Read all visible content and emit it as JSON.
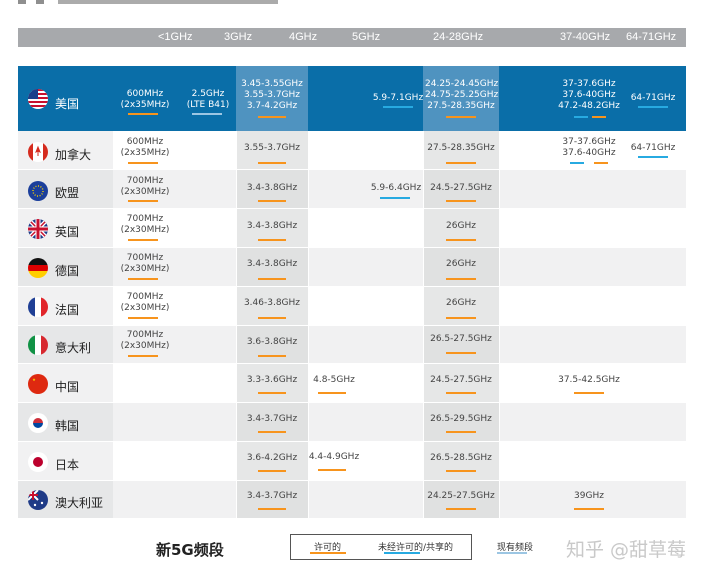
{
  "header": {
    "freq_labels": [
      "<1GHz",
      "3GHz",
      "4GHz",
      "5GHz",
      "24-28GHz",
      "37-40GHz",
      "64-71GHz"
    ]
  },
  "countries": [
    {
      "name": "美国",
      "flag": "us-flag-icon"
    },
    {
      "name": "加拿大",
      "flag": "canada-flag-icon"
    },
    {
      "name": "欧盟",
      "flag": "eu-flag-icon"
    },
    {
      "name": "英国",
      "flag": "uk-flag-icon"
    },
    {
      "name": "德国",
      "flag": "germany-flag-icon"
    },
    {
      "name": "法国",
      "flag": "france-flag-icon"
    },
    {
      "name": "意大利",
      "flag": "italy-flag-icon"
    },
    {
      "name": "中国",
      "flag": "china-flag-icon"
    },
    {
      "name": "韩国",
      "flag": "korea-flag-icon"
    },
    {
      "name": "日本",
      "flag": "japan-flag-icon"
    },
    {
      "name": "澳大利亚",
      "flag": "australia-flag-icon"
    }
  ],
  "cells": {
    "us_600": "600MHz\n(2x35MHz)",
    "us_25": "2.5GHz\n(LTE B41)",
    "us_3g": "3.45-3.55GHz\n3.55-3.7GHz\n3.7-4.2GHz",
    "us_59": "5.9-7.1GHz",
    "us_24": "24.25-24.45GHz\n24.75-25.25GHz\n27.5-28.35GHz",
    "us_37": "37-37.6GHz\n37.6-40GHz\n47.2-48.2GHz",
    "us_64": "64-71GHz",
    "ca_600": "600MHz\n(2x35MHz)",
    "ca_3g": "3.55-3.7GHz",
    "ca_24": "27.5-28.35GHz",
    "ca_37": "37-37.6GHz\n37.6-40GHz",
    "ca_64": "64-71GHz",
    "eu_700": "700MHz\n(2x30MHz)",
    "eu_3g": "3.4-3.8GHz",
    "eu_59": "5.9-6.4GHz",
    "eu_24": "24.5-27.5GHz",
    "uk_700": "700MHz\n(2x30MHz)",
    "uk_3g": "3.4-3.8GHz",
    "uk_24": "26GHz",
    "de_700": "700MHz\n(2x30MHz)",
    "de_3g": "3.4-3.8GHz",
    "de_24": "26GHz",
    "fr_700": "700MHz\n(2x30MHz)",
    "fr_3g": "3.46-3.8GHz",
    "fr_24": "26GHz",
    "it_700": "700MHz\n(2x30MHz)",
    "it_3g": "3.6-3.8GHz",
    "it_24": "26.5-27.5GHz",
    "cn_3g": "3.3-3.6GHz",
    "cn_48": "4.8-5GHz",
    "cn_24": "24.5-27.5GHz",
    "cn_37": "37.5-42.5GHz",
    "kr_3g": "3.4-3.7GHz",
    "kr_24": "26.5-29.5GHz",
    "jp_3g": "3.6-4.2GHz",
    "jp_44": "4.4-4.9GHz",
    "jp_24": "26.5-28.5GHz",
    "au_3g": "3.4-3.7GHz",
    "au_24": "24.25-27.5GHz",
    "au_39": "39GHz"
  },
  "legend": {
    "title": "新5G频段",
    "licensed": "许可的",
    "unlicensed": "未经许可的/共享的",
    "existing": "现有频段"
  },
  "colors": {
    "licensed": "#f7941d",
    "unlicensed": "#27aae1",
    "us_row": "#0a6ea8",
    "us_highlight": "#4f93c0",
    "header_bar": "#a7a9ac"
  },
  "watermark": "知乎 @甜草莓"
}
